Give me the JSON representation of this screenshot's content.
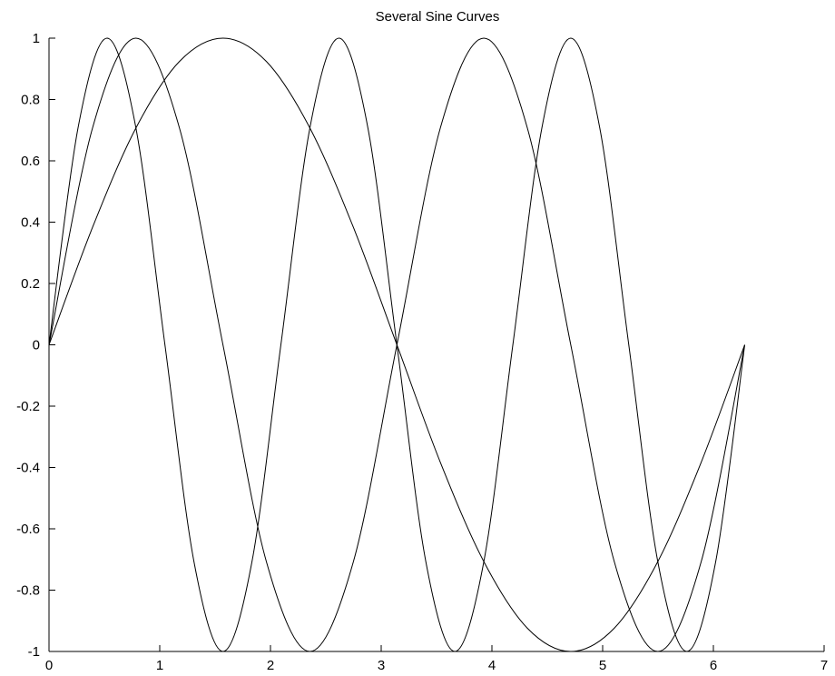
{
  "colors": {
    "background": "#ffffff",
    "line": "#000000",
    "axis": "#000000"
  },
  "chart_data": {
    "type": "line",
    "title": "Several Sine Curves",
    "xlabel": "",
    "ylabel": "",
    "xlim": [
      0,
      7
    ],
    "ylim": [
      -1,
      1
    ],
    "x_ticks": [
      0,
      1,
      2,
      3,
      4,
      5,
      6,
      7
    ],
    "x_tick_labels": [
      "0",
      "1",
      "2",
      "3",
      "4",
      "5",
      "6",
      "7"
    ],
    "y_ticks": [
      -1,
      -0.8,
      -0.6,
      -0.4,
      -0.2,
      0,
      0.2,
      0.4,
      0.6,
      0.8,
      1
    ],
    "y_tick_labels": [
      "-1",
      "-0.8",
      "-0.6",
      "-0.4",
      "-0.2",
      "0",
      "0.2",
      "0.4",
      "0.6",
      "0.8",
      "1"
    ],
    "grid": false,
    "legend": "none",
    "series": [
      {
        "x": [
          0,
          0.393,
          0.785,
          1.178,
          1.571,
          1.963,
          2.356,
          2.749,
          3.142,
          3.534,
          3.927,
          4.32,
          4.712,
          5.105,
          5.498,
          5.89,
          6.283
        ],
        "values": [
          0,
          0.383,
          0.707,
          0.924,
          1,
          0.924,
          0.707,
          0.383,
          0,
          -0.383,
          -0.707,
          -0.924,
          -1,
          -0.924,
          -0.707,
          -0.383,
          0
        ]
      },
      {
        "x": [
          0,
          0.393,
          0.785,
          1.178,
          1.571,
          1.963,
          2.356,
          2.749,
          3.142,
          3.534,
          3.927,
          4.32,
          4.712,
          5.105,
          5.498,
          5.89,
          6.283
        ],
        "values": [
          0,
          0.707,
          1,
          0.707,
          0,
          -0.707,
          -1,
          -0.707,
          0,
          0.707,
          1,
          0.707,
          0,
          -0.707,
          -1,
          -0.707,
          0
        ]
      },
      {
        "x": [
          0,
          0.262,
          0.524,
          0.785,
          1.047,
          1.309,
          1.571,
          1.833,
          2.094,
          2.356,
          2.618,
          2.88,
          3.142,
          3.403,
          3.665,
          3.927,
          4.189,
          4.451,
          4.712,
          4.974,
          5.236,
          5.498,
          5.76,
          6.021,
          6.283
        ],
        "values": [
          0,
          0.707,
          1,
          0.707,
          0,
          -0.707,
          -1,
          -0.707,
          0,
          0.707,
          1,
          0.707,
          0,
          -0.707,
          -1,
          -0.707,
          0,
          0.707,
          1,
          0.707,
          0,
          -0.707,
          -1,
          -0.707,
          0
        ]
      }
    ]
  }
}
